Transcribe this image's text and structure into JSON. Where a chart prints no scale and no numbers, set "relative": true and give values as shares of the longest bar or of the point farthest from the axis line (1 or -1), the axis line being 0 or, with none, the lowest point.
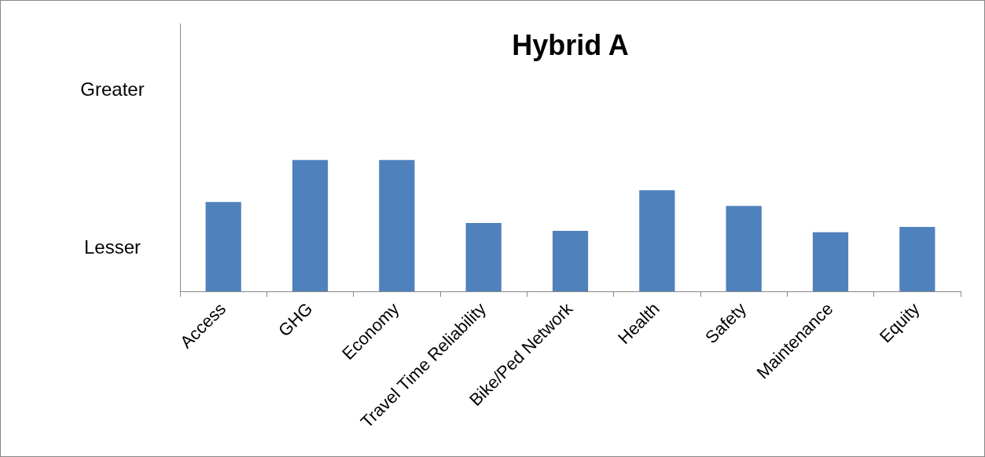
{
  "chart_data": {
    "type": "bar",
    "title": "Hybrid A",
    "relative": true,
    "categories": [
      "Access",
      "GHG",
      "Economy",
      "Travel Time Reliability",
      "Bike/Ped Network",
      "Health",
      "Safety",
      "Maintenance",
      "Equity"
    ],
    "values": [
      0.68,
      1,
      1,
      0.52,
      0.46,
      0.77,
      0.65,
      0.45,
      0.49
    ],
    "color": "#4f81bd",
    "grid": false,
    "legend": false,
    "annotations": [
      "Greater",
      "Lesser"
    ]
  }
}
